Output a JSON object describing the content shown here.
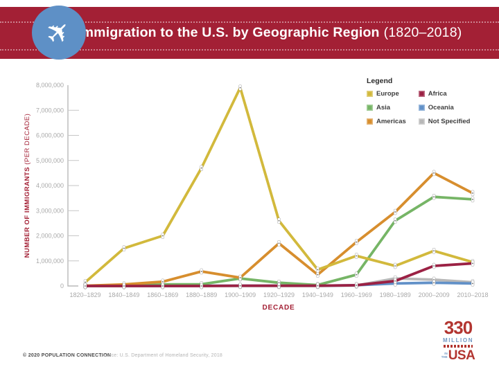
{
  "header": {
    "title_main": "Immigration to the U.S. by Geographic Region",
    "title_period": "(1820–2018)",
    "icon": "airplane-icon",
    "icon_glyph": "✈",
    "band_color": "#a32035",
    "icon_circle_color": "#5e90c6"
  },
  "legend": {
    "title": "Legend"
  },
  "chart_data": {
    "type": "line",
    "title": "Immigration to the U.S. by Geographic Region (1820–2018)",
    "xlabel": "DECADE",
    "ylabel": "NUMBER OF IMMIGRANTS (PER DECADE)",
    "ylabel_main": "NUMBER OF IMMIGRANTS",
    "ylabel_sub": " (PER DECADE)",
    "ylim": [
      0,
      8000000
    ],
    "grid": false,
    "legend_position": "top-right",
    "ytick_labels": [
      "0",
      "1,000,000",
      "2,000,000",
      "3,000,000",
      "4,000,000",
      "5,000,000",
      "6,000,000",
      "7,000,000",
      "8,000,000"
    ],
    "categories": [
      "1820–1829",
      "1840–1849",
      "1860–1869",
      "1880–1889",
      "1900–1909",
      "1920–1929",
      "1940–1949",
      "1960–1969",
      "1980–1989",
      "2000–2009",
      "2010–2018"
    ],
    "series": [
      {
        "name": "Europe",
        "color": "#d2b93c",
        "values": [
          150000,
          1500000,
          2000000,
          4700000,
          7900000,
          2600000,
          650000,
          1200000,
          800000,
          1400000,
          950000
        ]
      },
      {
        "name": "Asia",
        "color": "#76b566",
        "values": [
          0,
          0,
          60000,
          70000,
          300000,
          130000,
          40000,
          450000,
          2600000,
          3550000,
          3450000
        ]
      },
      {
        "name": "Americas",
        "color": "#d78e2e",
        "values": [
          10000,
          60000,
          170000,
          580000,
          330000,
          1700000,
          450000,
          1750000,
          2950000,
          4500000,
          3700000
        ]
      },
      {
        "name": "Africa",
        "color": "#9b2144",
        "values": [
          0,
          0,
          0,
          0,
          10000,
          10000,
          10000,
          30000,
          200000,
          800000,
          900000
        ]
      },
      {
        "name": "Oceania",
        "color": "#6291c8",
        "values": [
          0,
          0,
          0,
          10000,
          10000,
          10000,
          10000,
          30000,
          100000,
          130000,
          100000
        ]
      },
      {
        "name": "Not Specified",
        "color": "#b8b8b8",
        "values": [
          0,
          0,
          0,
          0,
          0,
          0,
          0,
          20000,
          300000,
          250000,
          150000
        ]
      }
    ]
  },
  "footer": {
    "copyright": "© 2020 POPULATION CONNECTION",
    "source": "Source: U.S. Department of Homeland Security, 2018"
  },
  "logo": {
    "number": "330",
    "word": "MILLION",
    "prefix": "IN THE",
    "country": "USA"
  }
}
